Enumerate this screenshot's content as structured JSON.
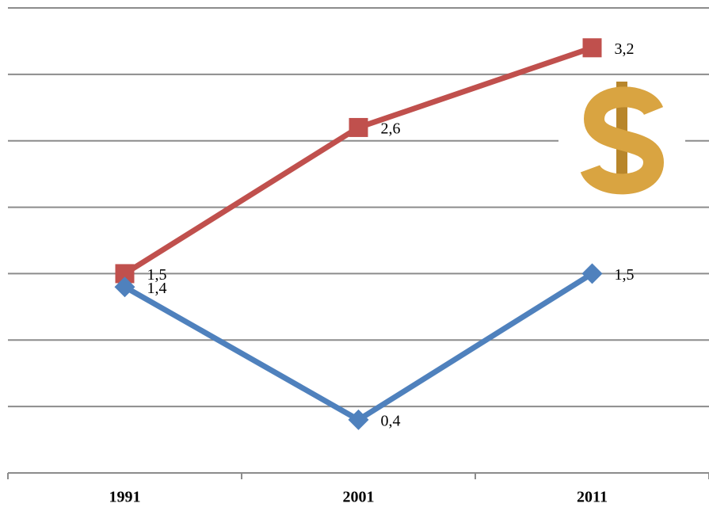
{
  "chart_data": {
    "type": "line",
    "categories": [
      "1991",
      "2001",
      "2011"
    ],
    "series": [
      {
        "color": "#c0504d",
        "marker": "square",
        "values": [
          1.5,
          2.6,
          3.2
        ],
        "value_labels": [
          "1,5",
          "2,6",
          "3,2"
        ]
      },
      {
        "color": "#4f81bd",
        "marker": "diamond",
        "values": [
          1.4,
          0.4,
          1.5
        ],
        "value_labels": [
          "1,4",
          "0,4",
          "1,5"
        ]
      }
    ],
    "ylim": [
      0,
      3.5
    ],
    "yticks": [
      0,
      0.5,
      1,
      1.5,
      2,
      2.5,
      3,
      3.5
    ],
    "grid": true
  }
}
